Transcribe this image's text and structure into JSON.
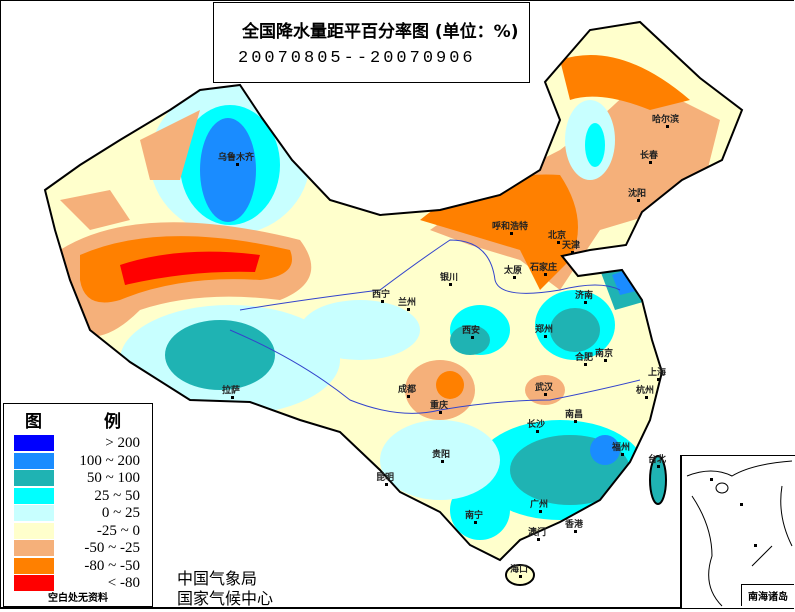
{
  "title": "全国降水量距平百分率图 (单位：%)",
  "period": "20070805--20070906",
  "legend": {
    "title": "图 例",
    "items": [
      {
        "label": "> 200",
        "color": "#0000ff"
      },
      {
        "label": "100 ~ 200",
        "color": "#1a8cff"
      },
      {
        "label": "50 ~ 100",
        "color": "#1fb3b3"
      },
      {
        "label": "25 ~ 50",
        "color": "#00ffff"
      },
      {
        "label": "0 ~ 25",
        "color": "#c8ffff"
      },
      {
        "label": "-25 ~ 0",
        "color": "#ffffcc"
      },
      {
        "label": "-50 ~ -25",
        "color": "#f5b07a"
      },
      {
        "label": "-80 ~ -50",
        "color": "#ff8000"
      },
      {
        "label": "< -80",
        "color": "#ff0000"
      }
    ],
    "note": "空白处无资料"
  },
  "org": {
    "line1": "中国气象局",
    "line2": "国家气候中心"
  },
  "inset": {
    "label": "南海诸岛"
  },
  "cities": [
    {
      "name": "乌鲁木齐"
    },
    {
      "name": "哈尔滨"
    },
    {
      "name": "长春"
    },
    {
      "name": "沈阳"
    },
    {
      "name": "呼和浩特"
    },
    {
      "name": "北京"
    },
    {
      "name": "天津"
    },
    {
      "name": "太原"
    },
    {
      "name": "石家庄"
    },
    {
      "name": "济南"
    },
    {
      "name": "银川"
    },
    {
      "name": "西宁"
    },
    {
      "name": "兰州"
    },
    {
      "name": "西安"
    },
    {
      "name": "郑州"
    },
    {
      "name": "合肥"
    },
    {
      "name": "南京"
    },
    {
      "name": "上海"
    },
    {
      "name": "杭州"
    },
    {
      "name": "武汉"
    },
    {
      "name": "成都"
    },
    {
      "name": "重庆"
    },
    {
      "name": "拉萨"
    },
    {
      "name": "长沙"
    },
    {
      "name": "南昌"
    },
    {
      "name": "福州"
    },
    {
      "name": "贵阳"
    },
    {
      "name": "昆明"
    },
    {
      "name": "南宁"
    },
    {
      "name": "广州"
    },
    {
      "name": "香港"
    },
    {
      "name": "澳门"
    },
    {
      "name": "海口"
    },
    {
      "name": "台北"
    }
  ]
}
